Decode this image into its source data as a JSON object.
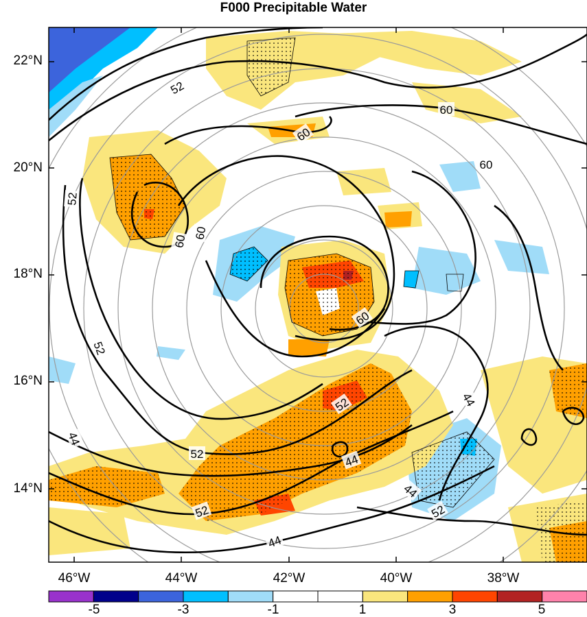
{
  "title": "F000 Precipitable Water",
  "map": {
    "lat_labels": [
      "22°N",
      "20°N",
      "18°N",
      "16°N",
      "14°N"
    ],
    "lat_values": [
      22,
      20,
      18,
      16,
      14
    ],
    "lon_labels": [
      "46°W",
      "44°W",
      "42°W",
      "40°W",
      "38°W"
    ],
    "lon_values": [
      -46,
      -44,
      -42,
      -40,
      -38
    ],
    "lat_range": [
      12.7,
      22.6
    ],
    "lon_range": [
      -46.5,
      -36.5
    ],
    "contour_labels": [
      "52",
      "60",
      "60",
      "60",
      "60",
      "60",
      "60",
      "52",
      "52",
      "52",
      "44",
      "52",
      "44",
      "44",
      "44",
      "52",
      "52",
      "44"
    ],
    "range_rings": "concentric gray circles centered near 17.8°N 41.4°W"
  },
  "colorbar": {
    "tick_labels": [
      "-5",
      "-3",
      "-1",
      "1",
      "3",
      "5"
    ],
    "colors": [
      "#9932cc",
      "#00008b",
      "#3c64dc",
      "#00bfff",
      "#a0dcf8",
      "#ffffff",
      "#ffffff",
      "#fae67d",
      "#ffa000",
      "#ff4500",
      "#b22222",
      "#ff82ab"
    ]
  }
}
